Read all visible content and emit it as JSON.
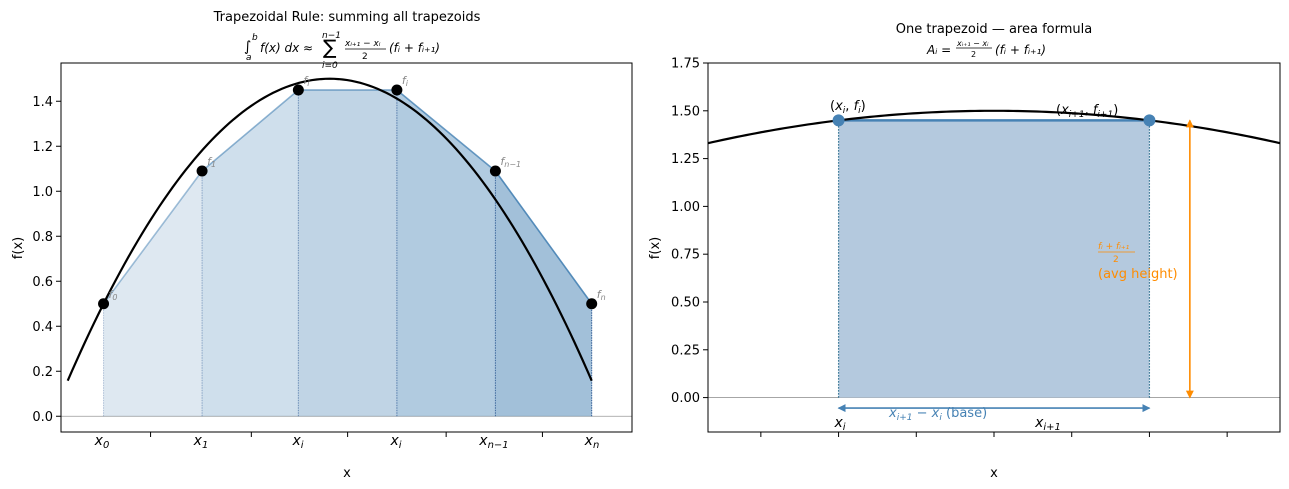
{
  "chart_data": [
    {
      "type": "area",
      "title": "Trapezoidal Rule: summing all trapezoids",
      "subtitle": "∫ₐᵇ f(x) dx ≈ Σᵢ₌₀ⁿ⁻¹ (xᵢ₊₁ − xᵢ)/2 (fᵢ + fᵢ₊₁)",
      "xlabel": "x",
      "ylabel": "f(x)",
      "xlim": [
        -0.1,
        2.45
      ],
      "ylim": [
        -0.07,
        1.57
      ],
      "yticks": [
        0.0,
        0.2,
        0.4,
        0.6,
        0.8,
        1.0,
        1.2,
        1.4
      ],
      "ytick_labels": [
        "0.0",
        "0.2",
        "0.4",
        "0.6",
        "0.8",
        "1.0",
        "1.2",
        "1.4"
      ],
      "xtick_labels": [
        "x0",
        "x1",
        "xi",
        "xi",
        "xn−1",
        "xn"
      ],
      "curve": {
        "x_range": [
          -0.07,
          2.27
        ],
        "peak_x": 1.1,
        "peak_y": 1.5,
        "note": ""
      },
      "points": {
        "x": [
          0.09,
          0.53,
          0.96,
          1.4,
          1.84,
          2.27
        ],
        "y": [
          0.5,
          1.09,
          1.45,
          1.45,
          1.09,
          0.5
        ],
        "labels": [
          "f0",
          "f1",
          "fi",
          "fi",
          "fn−1",
          "fn"
        ]
      },
      "fill_color": "#4682b4"
    },
    {
      "type": "area",
      "title": "One trapezoid — area formula",
      "subtitle": "Aᵢ = (xᵢ₊₁ − xᵢ)/2 (fᵢ + fᵢ₊₁)",
      "xlabel": "x",
      "ylabel": "f(x)",
      "xlim": [
        -0.42,
        1.42
      ],
      "ylim": [
        -0.18,
        1.75
      ],
      "yticks": [
        0.0,
        0.25,
        0.5,
        0.75,
        1.0,
        1.25,
        1.5,
        1.75
      ],
      "ytick_labels": [
        "0.00",
        "0.25",
        "0.50",
        "0.75",
        "1.00",
        "1.25",
        "1.50",
        "1.75"
      ],
      "xtick_labels": [
        "xi",
        "xi+1"
      ],
      "trapezoid": {
        "x": [
          0.0,
          1.0
        ],
        "y": [
          1.45,
          1.45
        ]
      },
      "point_labels": [
        "(xi, fi)",
        "(xi+1, fi+1)"
      ],
      "annotations": {
        "height_fraction": "(fi + fi+1)/2",
        "height_text": "(avg height)",
        "base_text": "xi+1 − xi  (base)"
      },
      "colors": {
        "fill": "#b4c9de",
        "edge": "#4682b4",
        "height": "#ff8c00",
        "base": "#4682b4",
        "curve": "#000000"
      }
    }
  ]
}
